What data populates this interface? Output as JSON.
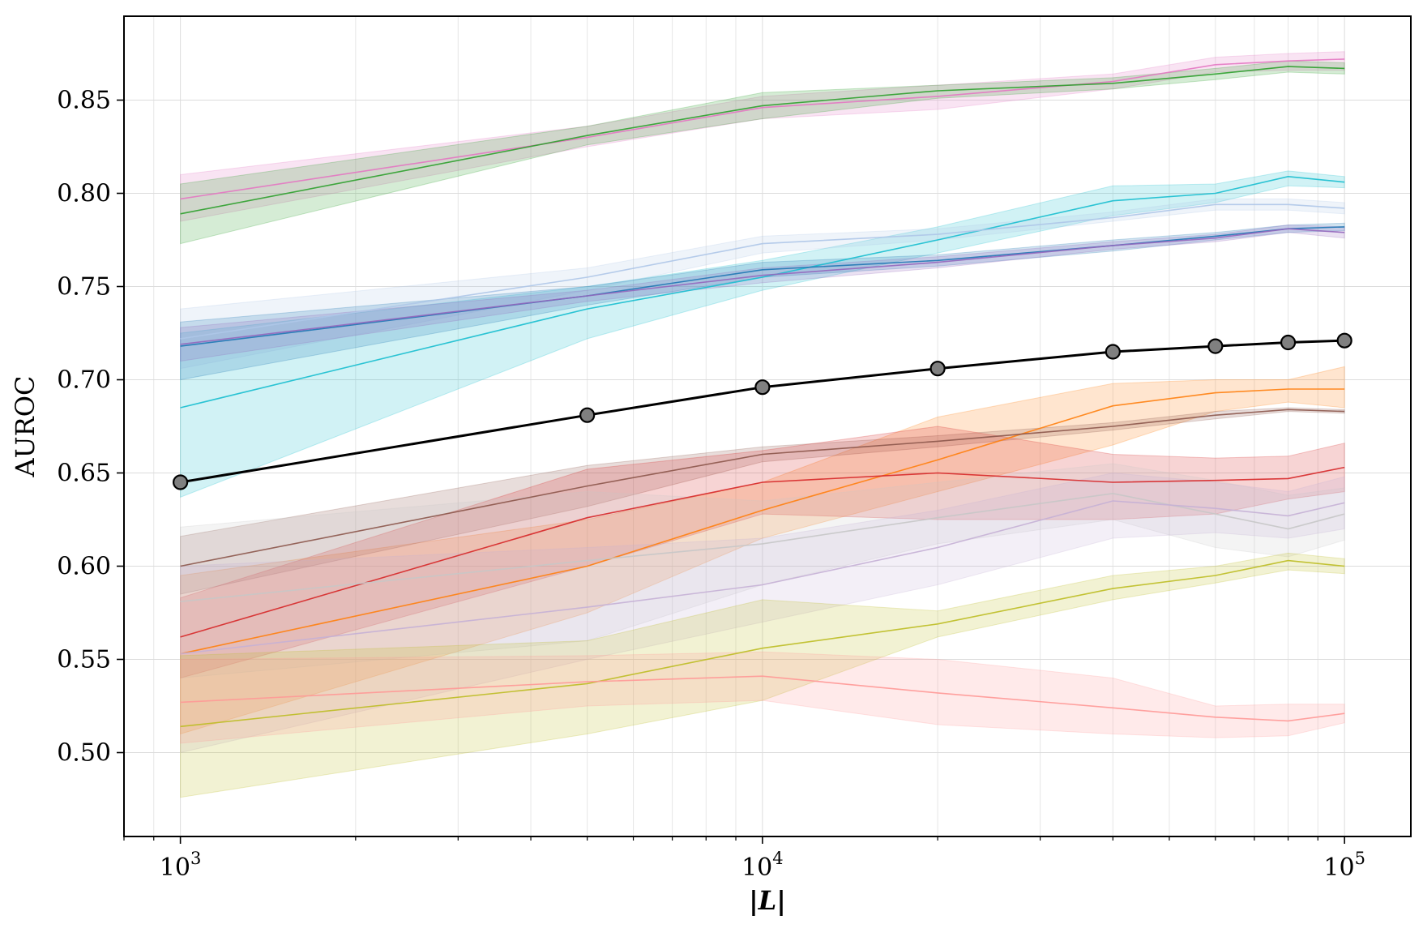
{
  "chart_data": {
    "type": "line",
    "xscale": "log",
    "xlim": [
      800,
      130000
    ],
    "ylim": [
      0.455,
      0.895
    ],
    "xlabel": "|L|",
    "ylabel": "AUROC",
    "grid": true,
    "legend": "none",
    "x_ticks": [
      {
        "value": 1000,
        "base": "10",
        "exp": "3"
      },
      {
        "value": 10000,
        "base": "10",
        "exp": "4"
      },
      {
        "value": 100000,
        "base": "10",
        "exp": "5"
      }
    ],
    "y_ticks": [
      0.5,
      0.55,
      0.6,
      0.65,
      0.7,
      0.75,
      0.8,
      0.85
    ],
    "y_tick_labels": [
      "0.50",
      "0.55",
      "0.60",
      "0.65",
      "0.70",
      "0.75",
      "0.80",
      "0.85"
    ],
    "x": [
      1000,
      5000,
      10000,
      20000,
      40000,
      60000,
      80000,
      100000
    ],
    "series": [
      {
        "color": "#e377c2",
        "values": [
          0.797,
          0.83,
          0.846,
          0.852,
          0.86,
          0.869,
          0.871,
          0.872
        ],
        "lower": [
          0.785,
          0.825,
          0.84,
          0.845,
          0.856,
          0.865,
          0.866,
          0.866
        ],
        "upper": [
          0.81,
          0.836,
          0.852,
          0.858,
          0.864,
          0.873,
          0.875,
          0.876
        ]
      },
      {
        "color": "#2ca02c",
        "values": [
          0.789,
          0.831,
          0.847,
          0.855,
          0.859,
          0.864,
          0.868,
          0.867
        ],
        "lower": [
          0.773,
          0.826,
          0.84,
          0.851,
          0.856,
          0.861,
          0.865,
          0.864
        ],
        "upper": [
          0.805,
          0.836,
          0.854,
          0.858,
          0.862,
          0.867,
          0.871,
          0.87
        ]
      },
      {
        "color": "#17becf",
        "values": [
          0.685,
          0.738,
          0.755,
          0.775,
          0.796,
          0.8,
          0.809,
          0.806
        ],
        "lower": [
          0.637,
          0.722,
          0.748,
          0.768,
          0.788,
          0.795,
          0.804,
          0.803
        ],
        "upper": [
          0.725,
          0.75,
          0.764,
          0.782,
          0.804,
          0.805,
          0.812,
          0.809
        ]
      },
      {
        "color": "#aec7e8",
        "values": [
          0.722,
          0.755,
          0.773,
          0.778,
          0.787,
          0.794,
          0.794,
          0.792
        ],
        "lower": [
          0.706,
          0.748,
          0.768,
          0.775,
          0.785,
          0.791,
          0.791,
          0.789
        ],
        "upper": [
          0.738,
          0.76,
          0.777,
          0.781,
          0.79,
          0.797,
          0.797,
          0.795
        ]
      },
      {
        "color": "#1f77b4",
        "values": [
          0.718,
          0.745,
          0.759,
          0.764,
          0.772,
          0.777,
          0.781,
          0.782
        ],
        "lower": [
          0.7,
          0.74,
          0.755,
          0.761,
          0.769,
          0.775,
          0.779,
          0.78
        ],
        "upper": [
          0.731,
          0.75,
          0.763,
          0.767,
          0.775,
          0.779,
          0.783,
          0.784
        ]
      },
      {
        "color": "#9467bd",
        "values": [
          0.719,
          0.745,
          0.756,
          0.763,
          0.772,
          0.776,
          0.781,
          0.779
        ],
        "lower": [
          0.71,
          0.742,
          0.752,
          0.76,
          0.77,
          0.774,
          0.779,
          0.776
        ],
        "upper": [
          0.728,
          0.748,
          0.76,
          0.766,
          0.774,
          0.778,
          0.783,
          0.782
        ]
      },
      {
        "color": "#ff7f0e",
        "values": [
          0.553,
          0.6,
          0.63,
          0.657,
          0.686,
          0.693,
          0.695,
          0.695
        ],
        "lower": [
          0.51,
          0.575,
          0.615,
          0.64,
          0.665,
          0.683,
          0.688,
          0.685
        ],
        "upper": [
          0.595,
          0.625,
          0.645,
          0.68,
          0.698,
          0.7,
          0.7,
          0.707
        ]
      },
      {
        "color": "#8c564b",
        "values": [
          0.6,
          0.643,
          0.66,
          0.667,
          0.675,
          0.681,
          0.684,
          0.683
        ],
        "lower": [
          0.585,
          0.632,
          0.656,
          0.664,
          0.673,
          0.679,
          0.683,
          0.682
        ],
        "upper": [
          0.616,
          0.654,
          0.664,
          0.67,
          0.677,
          0.683,
          0.685,
          0.684
        ]
      },
      {
        "color": "#d62728",
        "values": [
          0.562,
          0.626,
          0.645,
          0.65,
          0.645,
          0.646,
          0.647,
          0.653
        ],
        "lower": [
          0.54,
          0.6,
          0.628,
          0.625,
          0.625,
          0.628,
          0.636,
          0.64
        ],
        "upper": [
          0.583,
          0.652,
          0.662,
          0.675,
          0.66,
          0.658,
          0.659,
          0.666
        ]
      },
      {
        "color": "#c7c7c7",
        "values": [
          0.581,
          0.603,
          0.612,
          0.626,
          0.639,
          0.628,
          0.62,
          0.628
        ],
        "lower": [
          0.54,
          0.56,
          0.59,
          0.612,
          0.625,
          0.61,
          0.605,
          0.614
        ],
        "upper": [
          0.621,
          0.64,
          0.635,
          0.645,
          0.655,
          0.646,
          0.638,
          0.642
        ]
      },
      {
        "color": "#c5b0d5",
        "values": [
          0.553,
          0.578,
          0.59,
          0.61,
          0.635,
          0.631,
          0.627,
          0.634
        ],
        "lower": [
          0.5,
          0.55,
          0.57,
          0.59,
          0.615,
          0.618,
          0.615,
          0.62
        ],
        "upper": [
          0.6,
          0.61,
          0.615,
          0.63,
          0.65,
          0.645,
          0.64,
          0.648
        ]
      },
      {
        "color": "#bcbd22",
        "values": [
          0.514,
          0.537,
          0.556,
          0.569,
          0.588,
          0.595,
          0.603,
          0.6
        ],
        "lower": [
          0.476,
          0.51,
          0.528,
          0.562,
          0.582,
          0.591,
          0.598,
          0.596
        ],
        "upper": [
          0.552,
          0.56,
          0.582,
          0.576,
          0.595,
          0.6,
          0.607,
          0.604
        ]
      },
      {
        "color": "#ff9896",
        "values": [
          0.527,
          0.538,
          0.541,
          0.532,
          0.524,
          0.519,
          0.517,
          0.521
        ],
        "lower": [
          0.505,
          0.525,
          0.528,
          0.515,
          0.51,
          0.508,
          0.509,
          0.516
        ],
        "upper": [
          0.55,
          0.552,
          0.554,
          0.55,
          0.54,
          0.525,
          0.526,
          0.526
        ]
      }
    ],
    "mean_series": {
      "color": "#000000",
      "marker_color": "#808080",
      "values": [
        0.645,
        0.681,
        0.696,
        0.706,
        0.715,
        0.718,
        0.72,
        0.721
      ]
    }
  }
}
